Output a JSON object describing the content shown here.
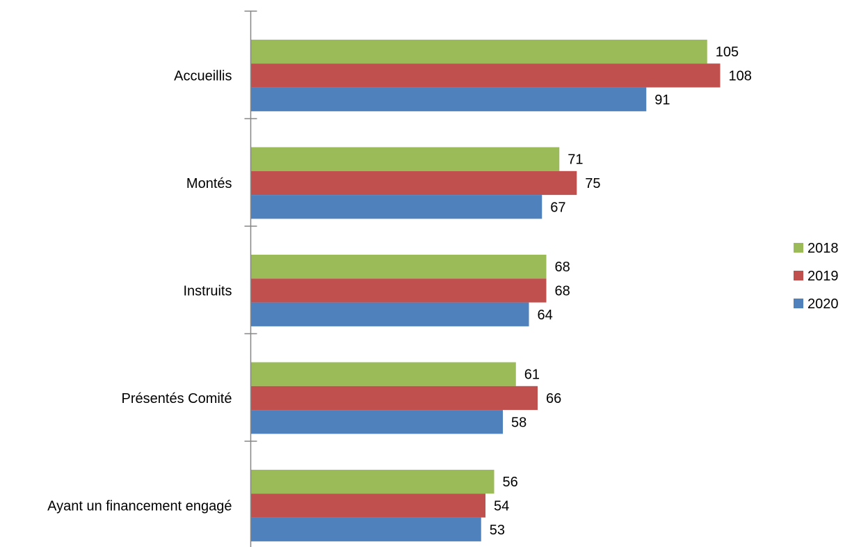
{
  "chart_data": {
    "type": "bar",
    "orientation": "horizontal",
    "categories": [
      "Accueillis",
      "Montés",
      "Instruits",
      "Présentés Comité",
      "Ayant un financement engagé"
    ],
    "series": [
      {
        "name": "2018",
        "color": "#9BBB59",
        "values": [
          105,
          71,
          68,
          61,
          56
        ]
      },
      {
        "name": "2019",
        "color": "#C0504D",
        "values": [
          108,
          75,
          68,
          66,
          54
        ]
      },
      {
        "name": "2020",
        "color": "#4F81BD",
        "values": [
          91,
          67,
          64,
          58,
          53
        ]
      }
    ],
    "title": "",
    "xlabel": "",
    "ylabel": "",
    "xlim": [
      0,
      120
    ],
    "grid": false,
    "legend_position": "right",
    "data_labels": true,
    "axis_color": "#868686"
  }
}
